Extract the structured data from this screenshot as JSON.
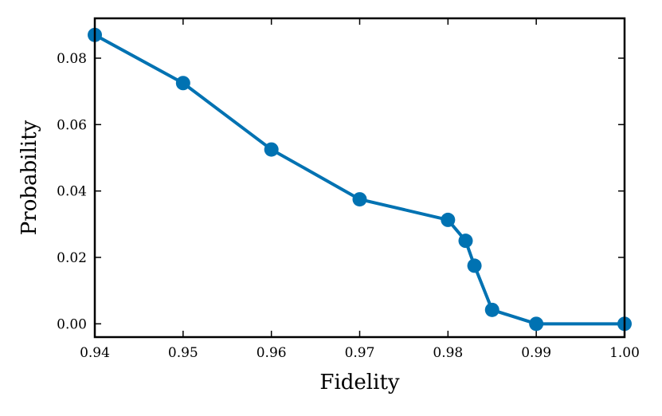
{
  "chart_data": {
    "type": "line",
    "title": "",
    "xlabel": "Fidelity",
    "ylabel": "Probability",
    "xlim": [
      0.94,
      1.0
    ],
    "ylim": [
      -0.004,
      0.092
    ],
    "xticks": [
      "0.94",
      "0.95",
      "0.96",
      "0.97",
      "0.98",
      "0.99",
      "1.00"
    ],
    "yticks": [
      "0.00",
      "0.02",
      "0.04",
      "0.06",
      "0.08"
    ],
    "grid": false,
    "legend": "none",
    "series": [
      {
        "color": "#0072b2",
        "marker": "circle",
        "x": [
          0.94,
          0.95,
          0.96,
          0.97,
          0.98,
          0.982,
          0.983,
          0.985,
          0.99,
          1.0
        ],
        "y": [
          0.087,
          0.0725,
          0.0525,
          0.0375,
          0.0313,
          0.025,
          0.0175,
          0.0042,
          0.0,
          0.0
        ]
      }
    ]
  }
}
